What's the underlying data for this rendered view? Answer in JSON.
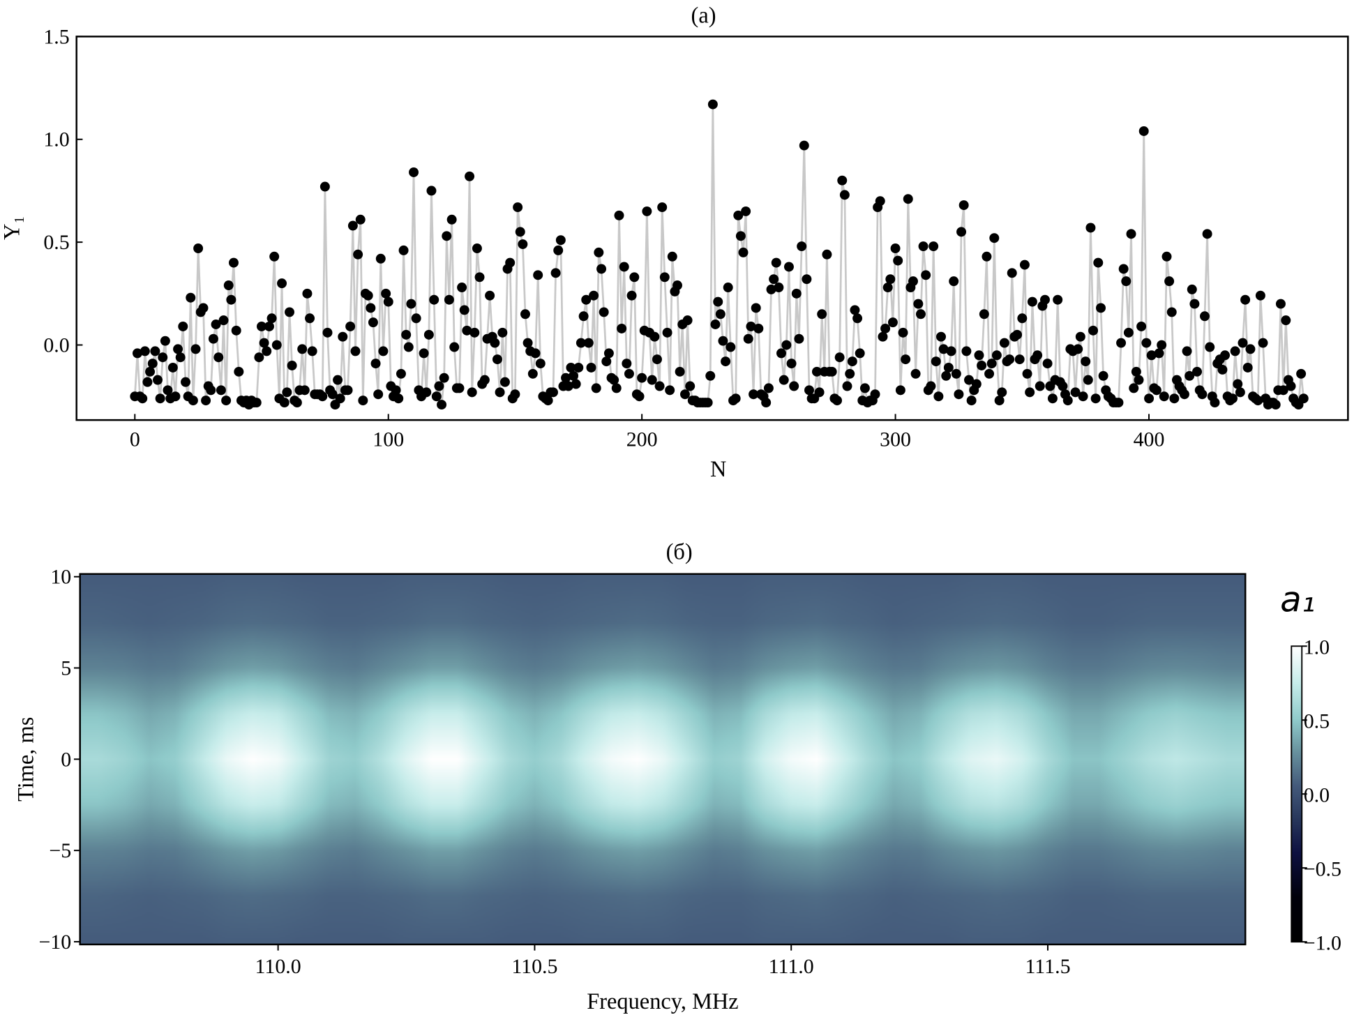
{
  "chart_data": [
    {
      "type": "line",
      "markers": "circle",
      "title": "(a)",
      "xlabel": "N",
      "ylabel": "Y₁",
      "xlim": [
        -23,
        478.5
      ],
      "ylim": [
        -0.365,
        1.5
      ],
      "x_ticks": [
        0,
        100,
        200,
        300,
        400
      ],
      "x_tick_labels": [
        "0",
        "100",
        "200",
        "300",
        "400"
      ],
      "y_ticks": [
        0.0,
        0.5,
        1.0,
        1.5
      ],
      "y_tick_labels": [
        "0.0",
        "0.5",
        "1.0",
        "1.5"
      ],
      "grid": false,
      "line_color": "#c8c8c8",
      "marker_color": "#000000",
      "x_start": 0,
      "values": [
        -0.25,
        -0.04,
        -0.25,
        -0.26,
        -0.03,
        -0.18,
        -0.13,
        -0.09,
        -0.03,
        -0.17,
        -0.26,
        -0.06,
        0.02,
        -0.22,
        -0.26,
        -0.11,
        -0.25,
        -0.02,
        -0.06,
        0.09,
        -0.18,
        -0.25,
        0.23,
        -0.27,
        -0.02,
        0.47,
        0.16,
        0.18,
        -0.27,
        -0.2,
        -0.22,
        0.03,
        0.1,
        -0.06,
        -0.22,
        0.12,
        -0.27,
        0.29,
        0.22,
        0.4,
        0.07,
        -0.13,
        -0.27,
        -0.28,
        -0.27,
        -0.29,
        -0.27,
        -0.28,
        -0.28,
        -0.06,
        0.09,
        0.01,
        -0.03,
        0.09,
        0.13,
        0.43,
        0.0,
        -0.26,
        0.3,
        -0.28,
        -0.23,
        0.16,
        -0.1,
        -0.27,
        -0.28,
        -0.22,
        -0.02,
        -0.22,
        0.25,
        0.13,
        -0.03,
        -0.24,
        -0.24,
        -0.24,
        -0.25,
        0.77,
        0.06,
        -0.22,
        -0.24,
        -0.29,
        -0.17,
        -0.26,
        0.04,
        -0.22,
        -0.22,
        0.09,
        0.58,
        -0.03,
        0.44,
        0.61,
        -0.27,
        0.25,
        0.24,
        0.18,
        0.11,
        -0.09,
        -0.24,
        0.42,
        -0.03,
        0.25,
        0.21,
        -0.2,
        -0.25,
        -0.22,
        -0.26,
        -0.14,
        0.46,
        0.05,
        -0.01,
        0.2,
        0.84,
        0.13,
        -0.22,
        -0.25,
        -0.04,
        -0.23,
        0.05,
        0.75,
        0.22,
        -0.25,
        -0.2,
        -0.29,
        -0.16,
        0.53,
        0.22,
        0.61,
        -0.01,
        -0.21,
        -0.21,
        0.28,
        0.17,
        0.07,
        0.82,
        -0.23,
        0.06,
        0.47,
        0.33,
        -0.19,
        -0.17,
        0.03,
        0.24,
        0.04,
        0.01,
        -0.07,
        -0.23,
        0.06,
        -0.18,
        0.37,
        0.4,
        -0.26,
        -0.24,
        0.67,
        0.55,
        0.49,
        0.15,
        0.01,
        -0.03,
        -0.14,
        -0.04,
        0.34,
        -0.09,
        -0.25,
        -0.26,
        -0.27,
        -0.23,
        -0.23,
        0.35,
        0.46,
        0.51,
        -0.2,
        -0.16,
        -0.2,
        -0.11,
        -0.15,
        -0.19,
        -0.11,
        0.01,
        0.14,
        0.22,
        0.01,
        -0.11,
        0.24,
        -0.21,
        0.45,
        0.37,
        0.16,
        -0.08,
        -0.04,
        -0.16,
        -0.17,
        -0.21,
        0.63,
        0.08,
        0.38,
        -0.09,
        -0.14,
        0.24,
        0.33,
        -0.24,
        -0.25,
        -0.16,
        0.07,
        0.65,
        0.06,
        -0.17,
        0.04,
        -0.07,
        -0.2,
        0.67,
        0.33,
        0.06,
        -0.22,
        0.43,
        0.26,
        0.29,
        -0.13,
        0.1,
        -0.24,
        0.12,
        -0.2,
        -0.27,
        -0.27,
        -0.28,
        -0.28,
        -0.28,
        -0.28,
        -0.28,
        -0.15,
        1.17,
        0.1,
        0.21,
        0.15,
        0.02,
        -0.08,
        0.28,
        -0.01,
        -0.27,
        -0.26,
        0.63,
        0.53,
        0.45,
        0.65,
        0.03,
        0.09,
        -0.24,
        0.18,
        0.08,
        -0.24,
        -0.25,
        -0.28,
        -0.21,
        0.27,
        0.32,
        0.4,
        0.28,
        -0.04,
        -0.17,
        0.0,
        0.38,
        -0.09,
        -0.2,
        0.25,
        0.03,
        0.48,
        0.97,
        0.32,
        -0.22,
        -0.26,
        -0.26,
        -0.13,
        -0.23,
        0.15,
        -0.13,
        0.44,
        -0.13,
        -0.13,
        -0.26,
        -0.27,
        -0.06,
        0.8,
        0.73,
        -0.2,
        -0.14,
        -0.08,
        0.17,
        0.13,
        -0.04,
        -0.27,
        -0.21,
        -0.28,
        -0.27,
        -0.27,
        -0.24,
        0.67,
        0.7,
        0.04,
        0.08,
        0.28,
        0.32,
        0.11,
        0.47,
        0.41,
        -0.22,
        0.06,
        -0.07,
        0.71,
        0.28,
        0.31,
        -0.14,
        0.2,
        0.15,
        0.48,
        0.34,
        -0.22,
        -0.2,
        0.48,
        -0.08,
        -0.25,
        0.04,
        -0.02,
        -0.15,
        -0.11,
        -0.03,
        0.31,
        -0.14,
        -0.24,
        0.55,
        0.68,
        -0.03,
        -0.17,
        -0.27,
        -0.22,
        -0.19,
        -0.05,
        -0.1,
        0.15,
        0.43,
        -0.14,
        -0.09,
        0.52,
        -0.05,
        -0.27,
        -0.23,
        0.01,
        -0.08,
        -0.07,
        0.35,
        0.04,
        0.05,
        -0.07,
        0.13,
        0.39,
        -0.14,
        -0.23,
        0.21,
        -0.07,
        -0.05,
        -0.2,
        0.19,
        0.22,
        -0.09,
        -0.2,
        -0.26,
        -0.17,
        0.22,
        -0.18,
        -0.2,
        -0.24,
        -0.27,
        -0.02,
        -0.03,
        -0.23,
        -0.02,
        0.04,
        -0.25,
        -0.08,
        -0.17,
        0.57,
        0.07,
        -0.26,
        0.4,
        0.18,
        -0.15,
        -0.22,
        -0.25,
        -0.26,
        -0.28,
        -0.28,
        -0.28,
        0.01,
        0.37,
        0.31,
        0.06,
        0.54,
        -0.21,
        -0.13,
        -0.17,
        0.09,
        1.04,
        0.01,
        -0.26,
        -0.05,
        -0.21,
        -0.22,
        -0.04,
        0.0,
        -0.25,
        0.43,
        0.31,
        0.16,
        -0.26,
        -0.17,
        -0.2,
        -0.22,
        -0.24,
        -0.03,
        -0.15,
        0.27,
        0.2,
        -0.13,
        -0.22,
        -0.24,
        0.14,
        0.54,
        -0.01,
        -0.25,
        -0.28,
        -0.09,
        -0.07,
        -0.12,
        -0.05,
        -0.25,
        -0.27,
        -0.26,
        -0.03,
        -0.19,
        -0.23,
        0.01,
        0.22,
        -0.11,
        -0.02,
        -0.25,
        -0.26,
        -0.27,
        0.24,
        0.01,
        -0.26,
        -0.29,
        -0.28,
        -0.28,
        -0.29,
        -0.22,
        0.2,
        -0.22,
        0.12,
        -0.17,
        -0.2,
        -0.26,
        -0.28,
        -0.29,
        -0.14,
        -0.26
      ]
    },
    {
      "type": "heatmap",
      "title": "(б)",
      "xlabel": "Frequency, MHz",
      "ylabel": "Time, ms",
      "xlim": [
        109.614,
        111.885
      ],
      "ylim": [
        -10.15,
        10.15
      ],
      "x_ticks": [
        110.0,
        110.5,
        111.0,
        111.5
      ],
      "x_tick_labels": [
        "110.0",
        "110.5",
        "111.0",
        "111.5"
      ],
      "y_ticks": [
        10,
        5,
        0,
        -5,
        -10
      ],
      "y_tick_labels": [
        "10",
        "5",
        "0",
        "−5",
        "−10"
      ],
      "colorbar": {
        "label": "a₁",
        "range": [
          -1.0,
          1.0
        ],
        "ticks": [
          1.0,
          0.5,
          0.0,
          -0.5,
          -1.0
        ],
        "tick_labels": [
          "1.0",
          "0.5",
          "0.0",
          "−0.5",
          "−1.0"
        ],
        "colormap": [
          [
            -1.0,
            "#000000"
          ],
          [
            -0.7,
            "#00000a"
          ],
          [
            -0.4,
            "#0d1040"
          ],
          [
            -0.15,
            "#2a3a5e"
          ],
          [
            0.05,
            "#43597a"
          ],
          [
            0.3,
            "#6a95a0"
          ],
          [
            0.5,
            "#8fcaca"
          ],
          [
            0.75,
            "#c6ecea"
          ],
          [
            1.0,
            "#ffffff"
          ]
        ]
      },
      "x_start": 109.65,
      "x_step": 0.05,
      "y": [
        -10,
        -7.5,
        -5,
        -2.5,
        0,
        2.5,
        5,
        7.5,
        10
      ],
      "z": [
        [
          0.06,
          0.06,
          0.06,
          0.06,
          0.06,
          0.07,
          0.07,
          0.07,
          0.06,
          0.06,
          0.06,
          0.06,
          0.07,
          0.07,
          0.07,
          0.07,
          0.06,
          0.06,
          0.06,
          0.07,
          0.07,
          0.07,
          0.07,
          0.06,
          0.06,
          0.06,
          0.07,
          0.07,
          0.07,
          0.07,
          0.06,
          0.06,
          0.06,
          0.06,
          0.07,
          0.07,
          0.07,
          0.06,
          0.06,
          0.06,
          0.06,
          0.06,
          0.06,
          0.06,
          0.06
        ],
        [
          0.1,
          0.09,
          0.08,
          0.09,
          0.1,
          0.12,
          0.13,
          0.12,
          0.11,
          0.09,
          0.09,
          0.1,
          0.11,
          0.13,
          0.13,
          0.11,
          0.1,
          0.09,
          0.1,
          0.11,
          0.12,
          0.13,
          0.12,
          0.1,
          0.09,
          0.09,
          0.11,
          0.12,
          0.13,
          0.11,
          0.1,
          0.08,
          0.09,
          0.1,
          0.11,
          0.12,
          0.11,
          0.1,
          0.08,
          0.08,
          0.09,
          0.1,
          0.1,
          0.1,
          0.1
        ],
        [
          0.22,
          0.21,
          0.18,
          0.19,
          0.25,
          0.31,
          0.34,
          0.32,
          0.26,
          0.21,
          0.19,
          0.24,
          0.29,
          0.34,
          0.34,
          0.28,
          0.22,
          0.19,
          0.22,
          0.28,
          0.32,
          0.34,
          0.31,
          0.25,
          0.19,
          0.21,
          0.28,
          0.32,
          0.34,
          0.28,
          0.22,
          0.18,
          0.19,
          0.25,
          0.29,
          0.31,
          0.28,
          0.22,
          0.18,
          0.18,
          0.21,
          0.24,
          0.25,
          0.24,
          0.22
        ],
        [
          0.48,
          0.44,
          0.37,
          0.41,
          0.55,
          0.69,
          0.76,
          0.73,
          0.58,
          0.44,
          0.41,
          0.51,
          0.66,
          0.76,
          0.76,
          0.62,
          0.48,
          0.41,
          0.48,
          0.62,
          0.73,
          0.76,
          0.69,
          0.55,
          0.41,
          0.44,
          0.62,
          0.73,
          0.76,
          0.62,
          0.48,
          0.37,
          0.41,
          0.55,
          0.66,
          0.69,
          0.62,
          0.48,
          0.37,
          0.37,
          0.44,
          0.51,
          0.55,
          0.51,
          0.48
        ],
        [
          0.62,
          0.57,
          0.48,
          0.53,
          0.72,
          0.91,
          1.0,
          0.95,
          0.76,
          0.57,
          0.53,
          0.67,
          0.86,
          1.0,
          1.0,
          0.81,
          0.62,
          0.53,
          0.62,
          0.81,
          0.95,
          1.0,
          0.91,
          0.72,
          0.53,
          0.57,
          0.81,
          0.95,
          1.0,
          0.81,
          0.62,
          0.48,
          0.53,
          0.72,
          0.86,
          0.91,
          0.81,
          0.62,
          0.48,
          0.48,
          0.57,
          0.67,
          0.72,
          0.67,
          0.62
        ],
        [
          0.48,
          0.44,
          0.37,
          0.41,
          0.55,
          0.69,
          0.76,
          0.73,
          0.58,
          0.44,
          0.41,
          0.51,
          0.66,
          0.76,
          0.76,
          0.62,
          0.48,
          0.41,
          0.48,
          0.62,
          0.73,
          0.76,
          0.69,
          0.55,
          0.41,
          0.44,
          0.62,
          0.73,
          0.76,
          0.62,
          0.48,
          0.37,
          0.41,
          0.55,
          0.66,
          0.69,
          0.62,
          0.48,
          0.37,
          0.37,
          0.44,
          0.51,
          0.55,
          0.51,
          0.48
        ],
        [
          0.22,
          0.21,
          0.18,
          0.19,
          0.25,
          0.31,
          0.34,
          0.32,
          0.26,
          0.21,
          0.19,
          0.24,
          0.29,
          0.34,
          0.34,
          0.28,
          0.22,
          0.19,
          0.22,
          0.28,
          0.32,
          0.34,
          0.31,
          0.25,
          0.19,
          0.21,
          0.28,
          0.32,
          0.34,
          0.28,
          0.22,
          0.18,
          0.19,
          0.25,
          0.29,
          0.31,
          0.28,
          0.22,
          0.18,
          0.18,
          0.21,
          0.24,
          0.25,
          0.24,
          0.22
        ],
        [
          0.1,
          0.09,
          0.08,
          0.09,
          0.1,
          0.12,
          0.13,
          0.12,
          0.11,
          0.09,
          0.09,
          0.1,
          0.11,
          0.13,
          0.13,
          0.11,
          0.1,
          0.09,
          0.1,
          0.11,
          0.12,
          0.13,
          0.12,
          0.1,
          0.09,
          0.09,
          0.11,
          0.12,
          0.13,
          0.11,
          0.1,
          0.08,
          0.09,
          0.1,
          0.11,
          0.12,
          0.11,
          0.1,
          0.08,
          0.08,
          0.09,
          0.1,
          0.1,
          0.1,
          0.1
        ],
        [
          0.06,
          0.06,
          0.06,
          0.06,
          0.06,
          0.07,
          0.07,
          0.07,
          0.06,
          0.06,
          0.06,
          0.06,
          0.07,
          0.07,
          0.07,
          0.07,
          0.06,
          0.06,
          0.06,
          0.07,
          0.07,
          0.07,
          0.07,
          0.06,
          0.06,
          0.06,
          0.07,
          0.07,
          0.07,
          0.07,
          0.06,
          0.06,
          0.06,
          0.06,
          0.07,
          0.07,
          0.07,
          0.06,
          0.06,
          0.06,
          0.06,
          0.06,
          0.06,
          0.06,
          0.06
        ]
      ]
    }
  ]
}
